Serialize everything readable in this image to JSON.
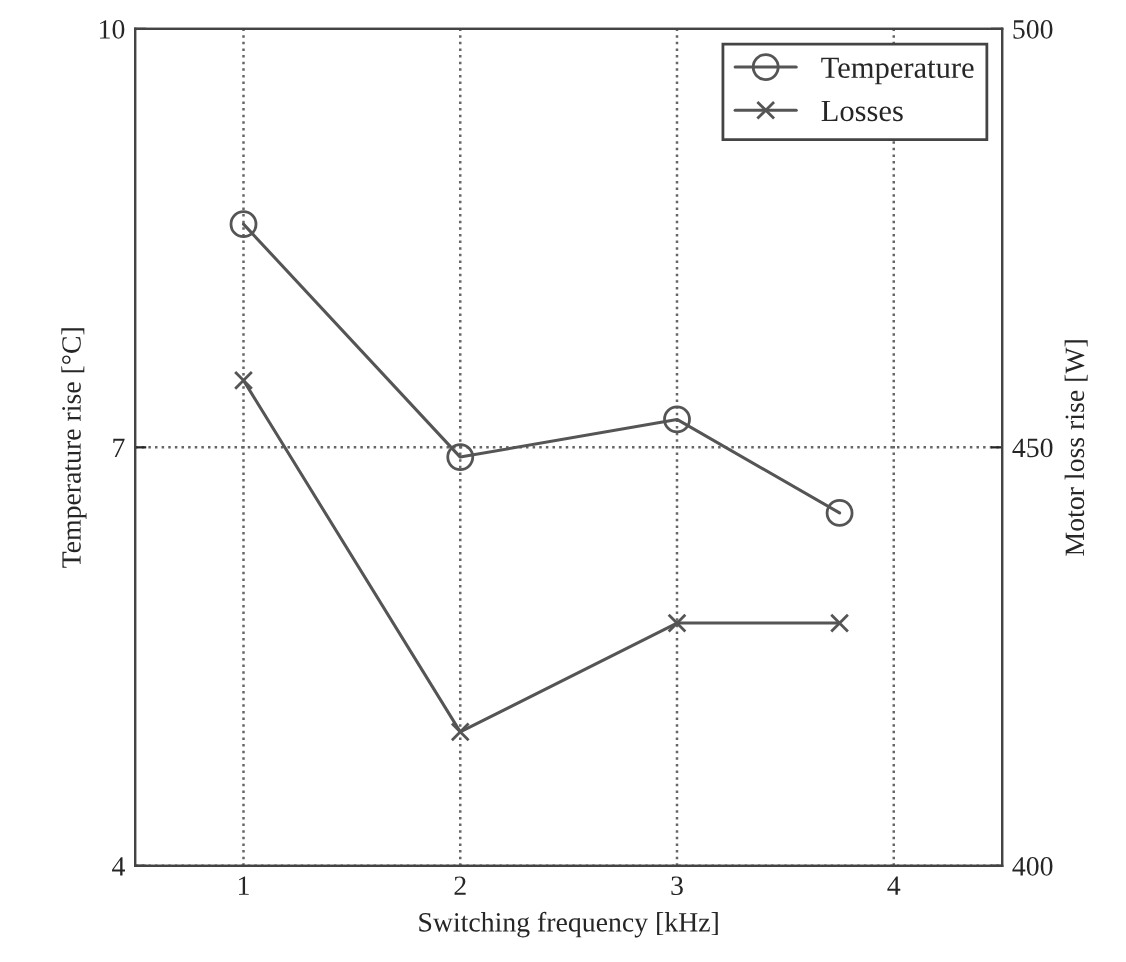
{
  "chart_data": {
    "type": "line",
    "xlabel": "Switching frequency [kHz]",
    "ylabel": "Temperature rise [°C]",
    "y2label": "Motor loss rise [W]",
    "x": [
      1,
      2,
      3,
      3.75
    ],
    "series": [
      {
        "name": "Temperature",
        "color": "#555555",
        "values": [
          8.6,
          6.93,
          7.2,
          6.53
        ],
        "marker": "circle"
      },
      {
        "name": "Losses",
        "color": "#555555",
        "values": [
          458,
          416,
          429,
          429
        ],
        "marker": "cross",
        "axis": "y2"
      }
    ],
    "xlim": [
      0.5,
      4.5
    ],
    "xticks": [
      1,
      2,
      3,
      4
    ],
    "ylim": [
      4,
      10
    ],
    "yticks": [
      4,
      7,
      10
    ],
    "y2lim": [
      400,
      500
    ],
    "y2ticks": [
      400,
      450,
      500
    ],
    "grid": true,
    "legend": "top right",
    "line_style": "solid"
  }
}
